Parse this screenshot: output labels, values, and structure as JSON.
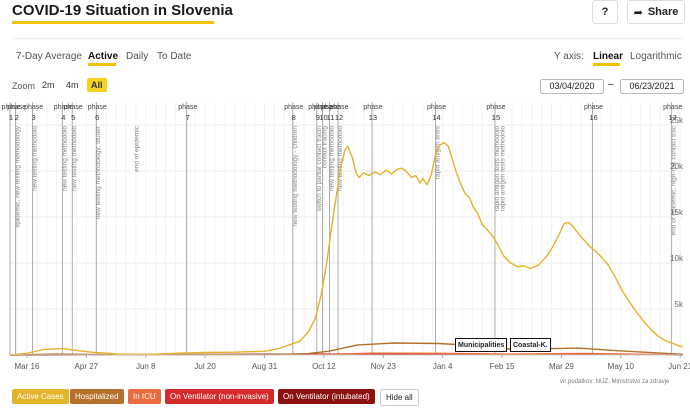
{
  "header": {
    "title": "COVID-19 Situation in Slovenia",
    "help_label": "?",
    "share_label": "Share"
  },
  "modes": [
    "7-Day Average",
    "Active",
    "Daily",
    "To Date"
  ],
  "active_mode": "Active",
  "yaxis": {
    "label": "Y axis:",
    "options": [
      "Linear",
      "Logarithmic"
    ],
    "selected": "Linear"
  },
  "zoom": {
    "label": "Zoom",
    "options": [
      "2m",
      "4m",
      "All"
    ],
    "selected": "All"
  },
  "date_range": {
    "from": "03/04/2020",
    "to": "06/23/2021",
    "separator": "–"
  },
  "colors": {
    "active": "#e3b32a",
    "hospitalized": "#b5702a",
    "icu": "#ea6b3c",
    "vent_noninvasive": "#d42a2a",
    "vent_intubated": "#8c1010",
    "highlight": "#f7d21c"
  },
  "legend": [
    {
      "label": "Active Cases",
      "color": "#e3b32a"
    },
    {
      "label": "Hospitalized",
      "color": "#b5702a"
    },
    {
      "label": "In ICU",
      "color": "#ea6b3c"
    },
    {
      "label": "On Ventilator (non-invasive)",
      "color": "#d42a2a"
    },
    {
      "label": "On Ventilator (intubated)",
      "color": "#8c1010"
    }
  ],
  "hide_all_label": "Hide all",
  "source_text": "vir podatkov: NIJZ, Ministrstvo za zdravje",
  "tooltip": {
    "left": "Municipalities",
    "right": "Coastal-K."
  },
  "chart_data": {
    "type": "line",
    "x_type": "date",
    "xlim": [
      "2020-03-04",
      "2021-06-23"
    ],
    "ylim": [
      0,
      27500
    ],
    "y_ticks": [
      {
        "value": 5000,
        "label": "5k"
      },
      {
        "value": 10000,
        "label": "10k"
      },
      {
        "value": 15000,
        "label": "15k"
      },
      {
        "value": 20000,
        "label": "20k"
      },
      {
        "value": 25000,
        "label": "25k"
      }
    ],
    "x_ticks": [
      {
        "date": "2020-03-16",
        "label": "Mar 16"
      },
      {
        "date": "2020-04-27",
        "label": "Apr 27"
      },
      {
        "date": "2020-06-08",
        "label": "Jun 8"
      },
      {
        "date": "2020-07-20",
        "label": "Jul 20"
      },
      {
        "date": "2020-08-31",
        "label": "Aug 31"
      },
      {
        "date": "2020-10-12",
        "label": "Oct 12"
      },
      {
        "date": "2020-11-23",
        "label": "Nov 23"
      },
      {
        "date": "2021-01-04",
        "label": "Jan 4"
      },
      {
        "date": "2021-02-15",
        "label": "Feb 15"
      },
      {
        "date": "2021-03-29",
        "label": "Mar 29"
      },
      {
        "date": "2021-05-10",
        "label": "May 10"
      },
      {
        "date": "2021-06-21",
        "label": "Jun 21"
      }
    ],
    "phases": [
      {
        "date": "2020-03-04",
        "label": "phase",
        "num": "1"
      },
      {
        "date": "2020-03-08",
        "label": "phase",
        "num": "2"
      },
      {
        "date": "2020-03-20",
        "label": "phase",
        "num": "3"
      },
      {
        "date": "2020-04-10",
        "label": "phase",
        "num": "4"
      },
      {
        "date": "2020-04-17",
        "label": "phase",
        "num": "5"
      },
      {
        "date": "2020-05-04",
        "label": "phase",
        "num": "6"
      },
      {
        "date": "2020-07-07",
        "label": "phase",
        "num": "7"
      },
      {
        "date": "2020-09-20",
        "label": "phase",
        "num": "8"
      },
      {
        "date": "2020-10-07",
        "label": "phase",
        "num": "9"
      },
      {
        "date": "2020-10-11",
        "label": "phase",
        "num": "10"
      },
      {
        "date": "2020-10-16",
        "label": "phase",
        "num": "11"
      },
      {
        "date": "2020-10-22",
        "label": "phase",
        "num": "12"
      },
      {
        "date": "2020-11-15",
        "label": "phase",
        "num": "13"
      },
      {
        "date": "2020-12-30",
        "label": "phase",
        "num": "14"
      },
      {
        "date": "2021-02-10",
        "label": "phase",
        "num": "15"
      },
      {
        "date": "2021-04-20",
        "label": "phase",
        "num": "16"
      },
      {
        "date": "2021-06-15",
        "label": "phase",
        "num": "17"
      }
    ],
    "annotations": [
      {
        "date": "2020-03-08",
        "text": "epidemic, new testing methodology"
      },
      {
        "date": "2020-03-20",
        "text": "new testing methodolo"
      },
      {
        "date": "2020-04-10",
        "text": "new testing methodolo"
      },
      {
        "date": "2020-04-17",
        "text": "new testing methodolo"
      },
      {
        "date": "2020-05-04",
        "text": "new testing methodology, studer"
      },
      {
        "date": "2020-05-31",
        "text": "end of epidemic"
      },
      {
        "date": "2020-09-20",
        "text": "new testing methodology - children"
      },
      {
        "date": "2020-10-07",
        "text": "switch to partial contact tracin"
      },
      {
        "date": "2020-10-11",
        "text": "contact tracing"
      },
      {
        "date": "2020-10-16",
        "text": "new testing methodolo"
      },
      {
        "date": "2020-10-22",
        "text": "new testing methodolo"
      },
      {
        "date": "2020-12-30",
        "text": "rapid antigen tests"
      },
      {
        "date": "2021-02-10",
        "text": "rapid antigen tests methodolo"
      },
      {
        "date": "2021-02-14",
        "text": "rapid antigen tests methodolo"
      },
      {
        "date": "2021-06-15",
        "text": "end of epidemic, high-risk contact trac"
      }
    ],
    "series": [
      {
        "name": "Active Cases",
        "color": "#e3b32a",
        "points": [
          [
            "2020-03-04",
            0
          ],
          [
            "2020-03-16",
            200
          ],
          [
            "2020-03-28",
            600
          ],
          [
            "2020-04-10",
            700
          ],
          [
            "2020-04-20",
            500
          ],
          [
            "2020-05-01",
            300
          ],
          [
            "2020-05-20",
            100
          ],
          [
            "2020-06-10",
            80
          ],
          [
            "2020-07-01",
            200
          ],
          [
            "2020-07-20",
            280
          ],
          [
            "2020-08-10",
            300
          ],
          [
            "2020-08-31",
            400
          ],
          [
            "2020-09-10",
            700
          ],
          [
            "2020-09-25",
            1500
          ],
          [
            "2020-10-01",
            2500
          ],
          [
            "2020-10-06",
            4000
          ],
          [
            "2020-10-10",
            6500
          ],
          [
            "2020-10-14",
            10000
          ],
          [
            "2020-10-18",
            14500
          ],
          [
            "2020-10-21",
            17500
          ],
          [
            "2020-10-24",
            20500
          ],
          [
            "2020-10-27",
            22300
          ],
          [
            "2020-10-29",
            22700
          ],
          [
            "2020-11-01",
            21500
          ],
          [
            "2020-11-04",
            19700
          ],
          [
            "2020-11-06",
            19300
          ],
          [
            "2020-11-09",
            19800
          ],
          [
            "2020-11-13",
            19500
          ],
          [
            "2020-11-17",
            19900
          ],
          [
            "2020-11-21",
            19600
          ],
          [
            "2020-11-25",
            20100
          ],
          [
            "2020-11-29",
            19700
          ],
          [
            "2020-12-03",
            20200
          ],
          [
            "2020-12-06",
            20300
          ],
          [
            "2020-12-09",
            20000
          ],
          [
            "2020-12-13",
            19300
          ],
          [
            "2020-12-16",
            19500
          ],
          [
            "2020-12-19",
            18700
          ],
          [
            "2020-12-21",
            19200
          ],
          [
            "2020-12-24",
            18500
          ],
          [
            "2020-12-27",
            19600
          ],
          [
            "2020-12-30",
            21800
          ],
          [
            "2021-01-02",
            22800
          ],
          [
            "2021-01-05",
            23100
          ],
          [
            "2021-01-08",
            22700
          ],
          [
            "2021-01-11",
            21200
          ],
          [
            "2021-01-14",
            19700
          ],
          [
            "2021-01-17",
            18500
          ],
          [
            "2021-01-20",
            17500
          ],
          [
            "2021-01-23",
            17100
          ],
          [
            "2021-01-26",
            16000
          ],
          [
            "2021-01-29",
            15300
          ],
          [
            "2021-02-01",
            14200
          ],
          [
            "2021-02-04",
            13700
          ],
          [
            "2021-02-08",
            13000
          ],
          [
            "2021-02-12",
            12000
          ],
          [
            "2021-02-16",
            10800
          ],
          [
            "2021-02-21",
            10000
          ],
          [
            "2021-02-26",
            9600
          ],
          [
            "2021-03-02",
            9700
          ],
          [
            "2021-03-07",
            9400
          ],
          [
            "2021-03-13",
            9800
          ],
          [
            "2021-03-19",
            10800
          ],
          [
            "2021-03-23",
            11800
          ],
          [
            "2021-03-27",
            13000
          ],
          [
            "2021-03-31",
            14300
          ],
          [
            "2021-04-03",
            14400
          ],
          [
            "2021-04-06",
            14000
          ],
          [
            "2021-04-10",
            13200
          ],
          [
            "2021-04-14",
            12500
          ],
          [
            "2021-04-18",
            11800
          ],
          [
            "2021-04-22",
            11300
          ],
          [
            "2021-04-26",
            10700
          ],
          [
            "2021-05-01",
            9800
          ],
          [
            "2021-05-06",
            8500
          ],
          [
            "2021-05-11",
            7000
          ],
          [
            "2021-05-16",
            5800
          ],
          [
            "2021-05-21",
            4700
          ],
          [
            "2021-05-26",
            3700
          ],
          [
            "2021-05-31",
            2800
          ],
          [
            "2021-06-05",
            2100
          ],
          [
            "2021-06-10",
            1600
          ],
          [
            "2021-06-15",
            1300
          ],
          [
            "2021-06-20",
            1000
          ],
          [
            "2021-06-23",
            900
          ]
        ]
      },
      {
        "name": "Hospitalized",
        "color": "#b5702a",
        "points": [
          [
            "2020-03-04",
            0
          ],
          [
            "2020-04-05",
            100
          ],
          [
            "2020-05-10",
            40
          ],
          [
            "2020-08-31",
            30
          ],
          [
            "2020-10-01",
            150
          ],
          [
            "2020-10-15",
            400
          ],
          [
            "2020-11-05",
            1100
          ],
          [
            "2020-12-01",
            1300
          ],
          [
            "2021-01-01",
            1250
          ],
          [
            "2021-01-20",
            1100
          ],
          [
            "2021-02-20",
            650
          ],
          [
            "2021-03-25",
            700
          ],
          [
            "2021-04-10",
            750
          ],
          [
            "2021-05-10",
            450
          ],
          [
            "2021-06-23",
            80
          ]
        ]
      },
      {
        "name": "In ICU",
        "color": "#ea6b3c",
        "points": [
          [
            "2020-03-04",
            0
          ],
          [
            "2020-04-05",
            35
          ],
          [
            "2020-05-20",
            10
          ],
          [
            "2020-10-01",
            20
          ],
          [
            "2020-11-15",
            200
          ],
          [
            "2021-01-01",
            190
          ],
          [
            "2021-02-20",
            100
          ],
          [
            "2021-04-15",
            160
          ],
          [
            "2021-06-23",
            20
          ]
        ]
      },
      {
        "name": "On Ventilator (non-invasive)",
        "color": "#d42a2a",
        "points": [
          [
            "2020-03-04",
            0
          ],
          [
            "2020-11-15",
            60
          ],
          [
            "2021-01-01",
            70
          ],
          [
            "2021-04-15",
            50
          ],
          [
            "2021-06-23",
            10
          ]
        ]
      },
      {
        "name": "On Ventilator (intubated)",
        "color": "#8c1010",
        "points": [
          [
            "2020-03-04",
            0
          ],
          [
            "2020-11-15",
            110
          ],
          [
            "2021-01-01",
            100
          ],
          [
            "2021-04-15",
            90
          ],
          [
            "2021-06-23",
            10
          ]
        ]
      }
    ]
  }
}
